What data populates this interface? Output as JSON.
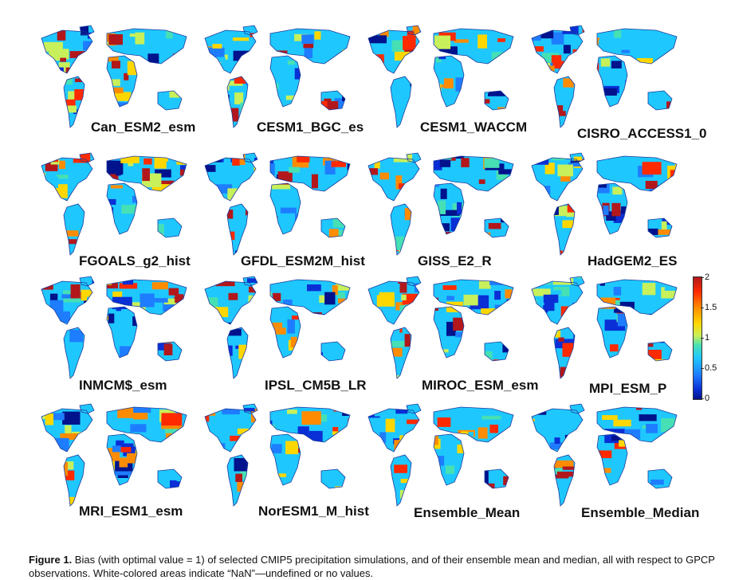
{
  "figure": {
    "panels": [
      {
        "label": "Can_ESM2_esm"
      },
      {
        "label": "CESM1_BGC_es"
      },
      {
        "label": "CESM1_WACCM"
      },
      {
        "label": "CISRO_ACCESS1_0"
      },
      {
        "label": "FGOALS_g2_hist"
      },
      {
        "label": "GFDL_ESM2M_hist"
      },
      {
        "label": "GISS_E2_R"
      },
      {
        "label": "HadGEM2_ES"
      },
      {
        "label": "INMCM$_esm"
      },
      {
        "label": "IPSL_CM5B_LR"
      },
      {
        "label": "MIROC_ESM_esm"
      },
      {
        "label": "MPI_ESM_P"
      },
      {
        "label": "MRI_ESM1_esm"
      },
      {
        "label": "NorESM1_M_hist"
      },
      {
        "label": "Ensemble_Mean"
      },
      {
        "label": "Ensemble_Median"
      }
    ],
    "colorbar": {
      "ticks": [
        "2",
        "1.5",
        "1",
        "0.5",
        "0"
      ],
      "colors": [
        "#b2181b",
        "#ff2a00",
        "#ff8c00",
        "#ffd700",
        "#c8f05a",
        "#46e0b4",
        "#1ec8ff",
        "#1e7dff",
        "#0a2fd6",
        "#00128c"
      ]
    },
    "caption": {
      "label": "Figure 1.",
      "text": " Bias (with optimal value = 1) of selected CMIP5 precipitation simulations, and of their ensemble mean and median, all with respect to GPCP observations. White-colored areas indicate “NaN”—undefined or no values."
    }
  }
}
